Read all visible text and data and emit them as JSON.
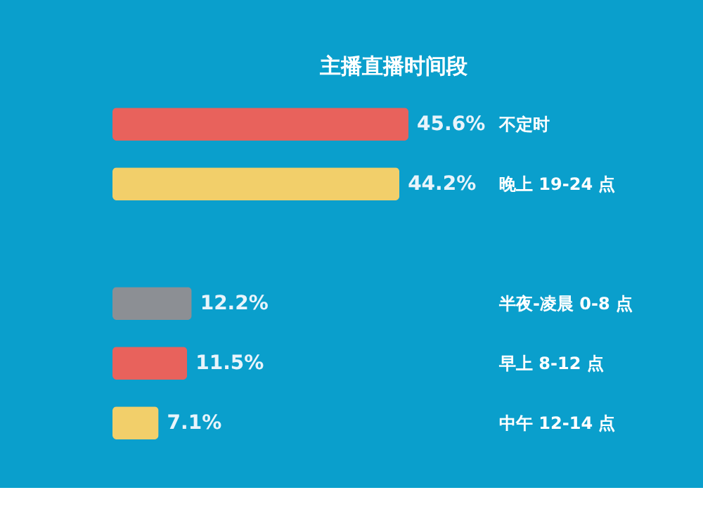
{
  "chart_data": {
    "type": "bar",
    "orientation": "horizontal",
    "title": "主播直播时间段",
    "categories": [
      "不定时",
      "晚上 19-24 点",
      null,
      "半夜-凌晨 0-8 点",
      "早上 8-12 点",
      "中午 12-14 点"
    ],
    "values": [
      45.6,
      44.2,
      null,
      12.2,
      11.5,
      7.1
    ],
    "value_labels": [
      "45.6%",
      "44.2%",
      null,
      "12.2%",
      "11.5%",
      "7.1%"
    ],
    "colors": [
      "#e8625c",
      "#f2cf6a",
      null,
      "#8c8f94",
      "#e8625c",
      "#f2cf6a"
    ]
  }
}
